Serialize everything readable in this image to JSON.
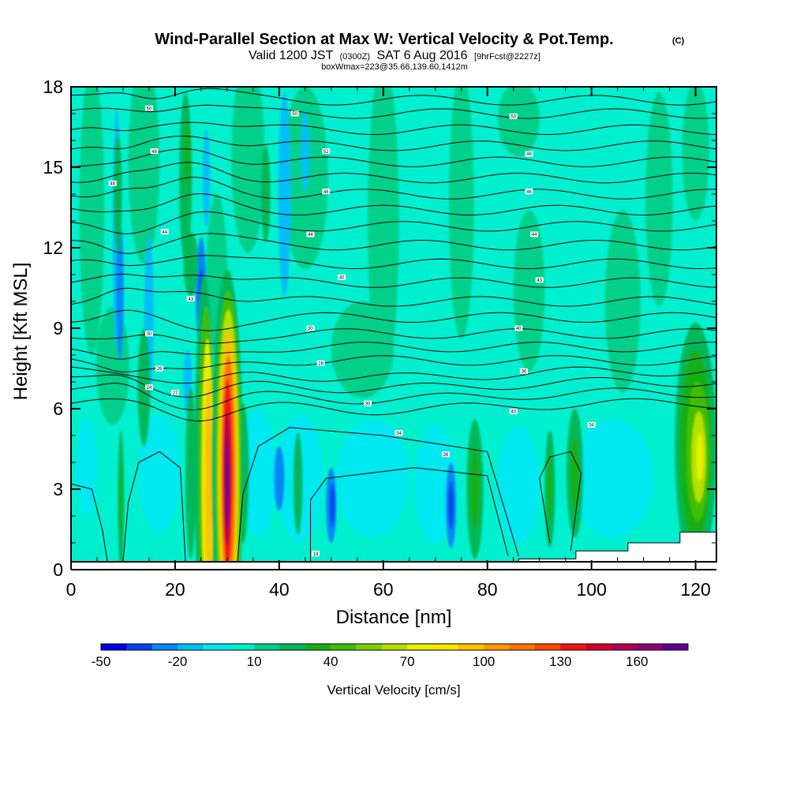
{
  "chart_data": {
    "type": "heatmap",
    "title": "Wind-Parallel Section at Max W: Vertical Velocity & Pot.Temp.",
    "title_mark": "(C)",
    "subtitle_parts": [
      "Valid 1200 JST",
      "(0300Z)",
      "SAT 6 Aug 2016",
      "[9hrFcst@2227z]"
    ],
    "subtitle2": "boxWmax=223@35.66,139.60,1412m",
    "xlabel": "Distance [nm]",
    "ylabel": "Height [Kft MSL]",
    "xlim": [
      0,
      124
    ],
    "ylim": [
      0,
      18
    ],
    "x_ticks": [
      "0",
      "20",
      "40",
      "60",
      "80",
      "100",
      "120"
    ],
    "y_ticks": [
      "0",
      "3",
      "6",
      "9",
      "12",
      "15",
      "18"
    ],
    "grid": false,
    "colorbar": {
      "title": "Vertical Velocity [cm/s]",
      "labels": [
        "-50",
        "-20",
        "10",
        "40",
        "70",
        "100",
        "130",
        "160"
      ],
      "label_values": [
        -50,
        -20,
        10,
        40,
        70,
        100,
        130,
        160
      ],
      "min": -50,
      "step": 10,
      "colors": [
        "#0000e6",
        "#0045ee",
        "#0088f5",
        "#00bff8",
        "#00e8f0",
        "#00f0cf",
        "#00d08a",
        "#00b85a",
        "#16b016",
        "#3fbe00",
        "#7dd000",
        "#b5e000",
        "#e6f000",
        "#ffe600",
        "#ffc200",
        "#ff9c00",
        "#ff7400",
        "#ff4800",
        "#f01414",
        "#d40030",
        "#b00050",
        "#8c0070",
        "#600090"
      ]
    },
    "fields": {
      "background": "#00f0cf",
      "cells": [
        {
          "x": 4,
          "z": 13.4,
          "rx": 2.4,
          "rz": 5.4,
          "w": 10
        },
        {
          "x": 14,
          "z": 15.2,
          "rx": 3,
          "rz": 3.8,
          "w": 10
        },
        {
          "x": 34,
          "z": 15.4,
          "rx": 3.2,
          "rz": 3.6,
          "w": 10
        },
        {
          "x": 45,
          "z": 14.6,
          "rx": 4.4,
          "rz": 3.4,
          "w": 10
        },
        {
          "x": 60,
          "z": 13,
          "rx": 3,
          "rz": 6,
          "w": 10
        },
        {
          "x": 75,
          "z": 13.6,
          "rx": 2.4,
          "rz": 5,
          "w": 10
        },
        {
          "x": 88,
          "z": 10.4,
          "rx": 3,
          "rz": 3,
          "w": 10
        },
        {
          "x": 106,
          "z": 10,
          "rx": 3.4,
          "rz": 3.4,
          "w": 10
        },
        {
          "x": 113,
          "z": 13.8,
          "rx": 2.6,
          "rz": 4,
          "w": 10
        },
        {
          "x": 120,
          "z": 15.6,
          "rx": 2.6,
          "rz": 2.6,
          "w": 10
        },
        {
          "x": 86,
          "z": 16.8,
          "rx": 4,
          "rz": 1.4,
          "w": 10
        },
        {
          "x": 8,
          "z": 7.6,
          "rx": 3.2,
          "rz": 2.2,
          "w": 10
        },
        {
          "x": 56,
          "z": 8.2,
          "rx": 6,
          "rz": 1.8,
          "w": 10
        },
        {
          "x": 28,
          "z": 11,
          "rx": 2,
          "rz": 3,
          "w": 10
        },
        {
          "x": 30,
          "z": 7.2,
          "rx": 2.4,
          "rz": 1.6,
          "w": 10
        },
        {
          "x": 3,
          "z": 3.8,
          "rx": 2,
          "rz": 1.8,
          "w": -10
        },
        {
          "x": 17,
          "z": 3.6,
          "rx": 4,
          "rz": 2.2,
          "w": -10
        },
        {
          "x": 36,
          "z": 3.6,
          "rx": 3.4,
          "rz": 2.4,
          "w": -10
        },
        {
          "x": 44,
          "z": 3.4,
          "rx": 4.4,
          "rz": 2.4,
          "w": -10
        },
        {
          "x": 58,
          "z": 3.4,
          "rx": 7,
          "rz": 2.2,
          "w": -10
        },
        {
          "x": 70,
          "z": 3.2,
          "rx": 4,
          "rz": 2.2,
          "w": -10
        },
        {
          "x": 86,
          "z": 3.2,
          "rx": 4,
          "rz": 2.2,
          "w": -10
        },
        {
          "x": 104,
          "z": 3.4,
          "rx": 8,
          "rz": 2.2,
          "w": -10
        },
        {
          "x": 8.8,
          "z": 12.8,
          "rx": 0.8,
          "rz": 4.4,
          "w": -20
        },
        {
          "x": 15,
          "z": 9.4,
          "rx": 0.9,
          "rz": 3,
          "w": -20
        },
        {
          "x": 41,
          "z": 14,
          "rx": 1.2,
          "rz": 3.8,
          "w": -20
        },
        {
          "x": 45,
          "z": 15.6,
          "rx": 0.8,
          "rz": 1.5,
          "w": -20
        },
        {
          "x": 26,
          "z": 14.6,
          "rx": 0.7,
          "rz": 1.8,
          "w": -20
        },
        {
          "x": 25,
          "z": 10.2,
          "rx": 1,
          "rz": 2.2,
          "w": -30
        },
        {
          "x": 25,
          "z": 10.2,
          "rx": 0.5,
          "rz": 1,
          "w": -40
        },
        {
          "x": 9.4,
          "z": 10.4,
          "rx": 0.7,
          "rz": 2.6,
          "w": -30
        },
        {
          "x": 40,
          "z": 3.4,
          "rx": 1,
          "rz": 1.2,
          "w": -30
        },
        {
          "x": 50,
          "z": 2.4,
          "rx": 1,
          "rz": 1.4,
          "w": -30
        },
        {
          "x": 50.2,
          "z": 2.4,
          "rx": 0.5,
          "rz": 0.8,
          "w": -40
        },
        {
          "x": 73,
          "z": 2.4,
          "rx": 1,
          "rz": 1.6,
          "w": -30
        },
        {
          "x": 73,
          "z": 2.4,
          "rx": 0.5,
          "rz": 0.9,
          "w": -40
        },
        {
          "x": 22.4,
          "z": 7,
          "rx": 0.8,
          "rz": 1.2,
          "w": -20
        },
        {
          "x": 9,
          "z": 14,
          "rx": 0.8,
          "rz": 2.2,
          "w": 20
        },
        {
          "x": 22,
          "z": 14.6,
          "rx": 1.2,
          "rz": 3.2,
          "w": 20
        },
        {
          "x": 23,
          "z": 11.4,
          "rx": 1.4,
          "rz": 1.2,
          "w": 20
        },
        {
          "x": 22.4,
          "z": 15.4,
          "rx": 0.5,
          "rz": 1.4,
          "w": 30
        },
        {
          "x": 14,
          "z": 6.8,
          "rx": 1.2,
          "rz": 2.2,
          "w": 20
        },
        {
          "x": 37.4,
          "z": 14,
          "rx": 0.9,
          "rz": 1.8,
          "w": 20
        },
        {
          "x": 9.6,
          "z": 2.6,
          "rx": 0.6,
          "rz": 2.6,
          "w": 20
        },
        {
          "x": 9.6,
          "z": 2.6,
          "rx": 0.3,
          "rz": 1.4,
          "w": 30
        },
        {
          "x": 23,
          "z": 3.6,
          "rx": 1,
          "rz": 3.2,
          "w": 20
        },
        {
          "x": 33,
          "z": 3.6,
          "rx": 1.2,
          "rz": 2.6,
          "w": 20
        },
        {
          "x": 43.6,
          "z": 3.2,
          "rx": 0.9,
          "rz": 1.9,
          "w": 20
        },
        {
          "x": 77.6,
          "z": 3,
          "rx": 1.6,
          "rz": 2.6,
          "w": 20
        },
        {
          "x": 77.6,
          "z": 3,
          "rx": 0.9,
          "rz": 1.5,
          "w": 30
        },
        {
          "x": 92,
          "z": 3,
          "rx": 1,
          "rz": 2.2,
          "w": 20
        },
        {
          "x": 92,
          "z": 3,
          "rx": 0.5,
          "rz": 1.2,
          "w": 30
        },
        {
          "x": 96.8,
          "z": 3.6,
          "rx": 1.6,
          "rz": 2.4,
          "w": 20
        },
        {
          "x": 96.8,
          "z": 3.6,
          "rx": 0.8,
          "rz": 1.4,
          "w": 30
        },
        {
          "x": 120,
          "z": 4.6,
          "rx": 4,
          "rz": 4.6,
          "w": 20
        },
        {
          "x": 120,
          "z": 4.6,
          "rx": 3,
          "rz": 3.6,
          "w": 30
        },
        {
          "x": 120.4,
          "z": 4.4,
          "rx": 2.2,
          "rz": 2.6,
          "w": 40
        },
        {
          "x": 120.6,
          "z": 4.2,
          "rx": 1.4,
          "rz": 1.7,
          "w": 60
        },
        {
          "x": 120.8,
          "z": 4.2,
          "rx": 0.7,
          "rz": 0.9,
          "w": 70
        },
        {
          "x": 25.6,
          "z": 4,
          "rx": 1.8,
          "rz": 7,
          "w": 20
        },
        {
          "x": 26,
          "z": 3.6,
          "rx": 1.5,
          "rz": 6.2,
          "w": 40
        },
        {
          "x": 26.2,
          "z": 3.4,
          "rx": 1.1,
          "rz": 5.2,
          "w": 70
        },
        {
          "x": 26.4,
          "z": 3.2,
          "rx": 0.7,
          "rz": 4,
          "w": 90
        },
        {
          "x": 30,
          "z": 3.8,
          "rx": 3,
          "rz": 7.4,
          "w": 20
        },
        {
          "x": 30.2,
          "z": 3.6,
          "rx": 2.5,
          "rz": 6.8,
          "w": 40
        },
        {
          "x": 30.2,
          "z": 3.6,
          "rx": 2.1,
          "rz": 6.1,
          "w": 60
        },
        {
          "x": 30.2,
          "z": 3.6,
          "rx": 1.7,
          "rz": 5.3,
          "w": 90
        },
        {
          "x": 30.2,
          "z": 3.6,
          "rx": 1.35,
          "rz": 4.4,
          "w": 110
        },
        {
          "x": 30.1,
          "z": 3.6,
          "rx": 0.95,
          "rz": 3.5,
          "w": 130
        },
        {
          "x": 30,
          "z": 3.4,
          "rx": 0.6,
          "rz": 2.5,
          "w": 150
        },
        {
          "x": 30,
          "z": 3.2,
          "rx": 0.35,
          "rz": 1.6,
          "w": 170
        }
      ]
    },
    "isentropes": {
      "levels": [
        6.2,
        6.6,
        7.0,
        7.4,
        7.8,
        8.3,
        8.8,
        9.4,
        10.0,
        10.7,
        11.4,
        12.1,
        12.8,
        13.4,
        14.0,
        14.6,
        15.2,
        15.8,
        16.4,
        17.0,
        17.5
      ],
      "labels": [
        {
          "x": 15,
          "z": 6.8,
          "text": "24"
        },
        {
          "x": 17,
          "z": 7.5,
          "text": "26"
        },
        {
          "x": 20,
          "z": 6.6,
          "text": "27"
        },
        {
          "x": 15,
          "z": 8.8,
          "text": "30"
        },
        {
          "x": 23,
          "z": 10.1,
          "text": "43"
        },
        {
          "x": 18,
          "z": 12.6,
          "text": "44"
        },
        {
          "x": 8,
          "z": 14.4,
          "text": "46"
        },
        {
          "x": 16,
          "z": 15.6,
          "text": "48"
        },
        {
          "x": 15,
          "z": 17.2,
          "text": "50"
        },
        {
          "x": 43,
          "z": 17,
          "text": "50"
        },
        {
          "x": 49,
          "z": 15.6,
          "text": "52"
        },
        {
          "x": 49,
          "z": 14.1,
          "text": "46"
        },
        {
          "x": 46,
          "z": 12.5,
          "text": "44"
        },
        {
          "x": 52,
          "z": 10.9,
          "text": "40"
        },
        {
          "x": 46,
          "z": 9,
          "text": "30"
        },
        {
          "x": 48,
          "z": 7.7,
          "text": "28"
        },
        {
          "x": 57,
          "z": 6.2,
          "text": "30"
        },
        {
          "x": 63,
          "z": 5.1,
          "text": "34"
        },
        {
          "x": 72,
          "z": 4.3,
          "text": "36"
        },
        {
          "x": 85,
          "z": 5.9,
          "text": "40"
        },
        {
          "x": 86,
          "z": 9,
          "text": "40"
        },
        {
          "x": 87,
          "z": 7.4,
          "text": "36"
        },
        {
          "x": 100,
          "z": 5.4,
          "text": "34"
        },
        {
          "x": 90,
          "z": 10.8,
          "text": "43"
        },
        {
          "x": 89,
          "z": 12.5,
          "text": "44"
        },
        {
          "x": 88,
          "z": 14.1,
          "text": "46"
        },
        {
          "x": 88,
          "z": 15.5,
          "text": "48"
        },
        {
          "x": 85,
          "z": 16.9,
          "text": "50"
        },
        {
          "x": 47,
          "z": 0.6,
          "text": "18"
        }
      ]
    },
    "terrain": [
      [
        86,
        0.4
      ],
      [
        97,
        0.7
      ],
      [
        107,
        1.0
      ],
      [
        117,
        1.4
      ],
      [
        124,
        1.4
      ]
    ],
    "colors": {
      "contour": "#000000",
      "terrain": "#ffffff"
    }
  }
}
